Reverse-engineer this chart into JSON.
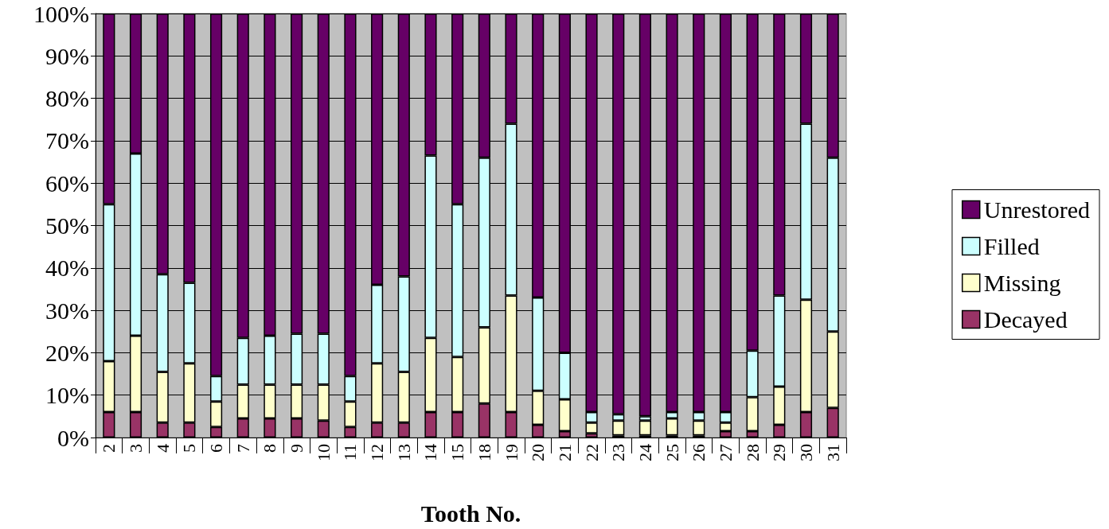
{
  "chart_data": {
    "type": "bar",
    "stacked": true,
    "xlabel": "Tooth No.",
    "categories": [
      "2",
      "3",
      "4",
      "5",
      "6",
      "7",
      "8",
      "9",
      "10",
      "11",
      "12",
      "13",
      "14",
      "15",
      "18",
      "19",
      "20",
      "21",
      "22",
      "23",
      "24",
      "25",
      "26",
      "27",
      "28",
      "29",
      "30",
      "31"
    ],
    "series": [
      {
        "name": "Decayed",
        "color": "#993366",
        "values": [
          6,
          6,
          3.5,
          3.5,
          2.5,
          4.5,
          4.5,
          4.5,
          4,
          2.5,
          3.5,
          3.5,
          6,
          6,
          8,
          6,
          3,
          1.5,
          1,
          0.5,
          0.5,
          0.5,
          0.5,
          1.5,
          1.5,
          3,
          6,
          7
        ]
      },
      {
        "name": "Missing",
        "color": "#ffffcc",
        "values": [
          12,
          18,
          12,
          14,
          6,
          8,
          8,
          8,
          8.5,
          6,
          14,
          12,
          17.5,
          13,
          18,
          27.5,
          8,
          7.5,
          2.5,
          3.5,
          3.5,
          4,
          3.5,
          2,
          8,
          9,
          26.5,
          18
        ]
      },
      {
        "name": "Filled",
        "color": "#ccffff",
        "values": [
          37,
          43,
          23,
          19,
          6,
          11,
          11.5,
          12,
          12,
          6,
          18.5,
          22.5,
          43,
          36,
          40,
          40.5,
          22,
          11,
          2.5,
          1.5,
          1,
          1.5,
          2,
          2.5,
          11,
          21.5,
          41.5,
          41
        ]
      },
      {
        "name": "Unrestored",
        "color": "#660066",
        "values": [
          45,
          33,
          61.5,
          63.5,
          85.5,
          76.5,
          76,
          75.5,
          75.5,
          85.5,
          64,
          62,
          33.5,
          45,
          34,
          26,
          67,
          80,
          94,
          94.5,
          95,
          94,
          94,
          94,
          79.5,
          66.5,
          26,
          34
        ]
      }
    ],
    "ylim": [
      0,
      100
    ],
    "yticks": [
      {
        "value": 0,
        "label": "0%"
      },
      {
        "value": 10,
        "label": "10%"
      },
      {
        "value": 20,
        "label": "20%"
      },
      {
        "value": 30,
        "label": "30%"
      },
      {
        "value": 40,
        "label": "40%"
      },
      {
        "value": 50,
        "label": "50%"
      },
      {
        "value": 60,
        "label": "60%"
      },
      {
        "value": 70,
        "label": "70%"
      },
      {
        "value": 80,
        "label": "80%"
      },
      {
        "value": 90,
        "label": "90%"
      },
      {
        "value": 100,
        "label": "100%"
      }
    ],
    "grid": "y",
    "legend": "right"
  }
}
